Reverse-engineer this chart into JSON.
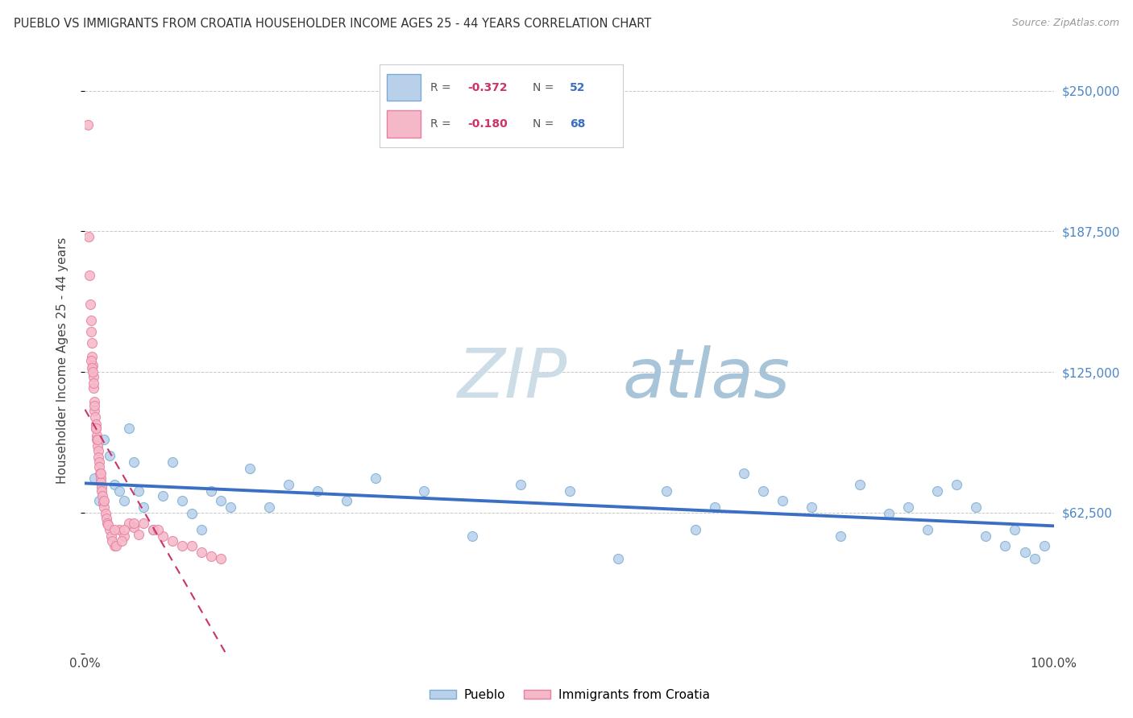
{
  "title": "PUEBLO VS IMMIGRANTS FROM CROATIA HOUSEHOLDER INCOME AGES 25 - 44 YEARS CORRELATION CHART",
  "source": "Source: ZipAtlas.com",
  "ylabel": "Householder Income Ages 25 - 44 years",
  "y_ticks": [
    0,
    62500,
    125000,
    187500,
    250000
  ],
  "y_tick_labels": [
    "",
    "$62,500",
    "$125,000",
    "$187,500",
    "$250,000"
  ],
  "background_color": "#ffffff",
  "grid_color": "#c8c8c8",
  "pueblo_color": "#b8d0ea",
  "pueblo_edge_color": "#7aadd4",
  "croatia_color": "#f5b8c8",
  "croatia_edge_color": "#e87fa0",
  "trendline_pueblo_color": "#3a6fc4",
  "trendline_croatia_color": "#cc3366",
  "marker_size": 75,
  "pueblo_x": [
    1.0,
    1.5,
    2.0,
    2.5,
    3.0,
    3.5,
    4.0,
    4.5,
    5.0,
    5.5,
    6.0,
    7.0,
    8.0,
    9.0,
    10.0,
    11.0,
    12.0,
    13.0,
    14.0,
    15.0,
    17.0,
    19.0,
    21.0,
    24.0,
    27.0,
    30.0,
    35.0,
    40.0,
    45.0,
    50.0,
    55.0,
    60.0,
    63.0,
    65.0,
    68.0,
    70.0,
    72.0,
    75.0,
    78.0,
    80.0,
    83.0,
    85.0,
    87.0,
    88.0,
    90.0,
    92.0,
    93.0,
    95.0,
    96.0,
    97.0,
    98.0,
    99.0
  ],
  "pueblo_y": [
    78000,
    68000,
    95000,
    88000,
    75000,
    72000,
    68000,
    100000,
    85000,
    72000,
    65000,
    55000,
    70000,
    85000,
    68000,
    62000,
    55000,
    72000,
    68000,
    65000,
    82000,
    65000,
    75000,
    72000,
    68000,
    78000,
    72000,
    52000,
    75000,
    72000,
    42000,
    72000,
    55000,
    65000,
    80000,
    72000,
    68000,
    65000,
    52000,
    75000,
    62000,
    65000,
    55000,
    72000,
    75000,
    65000,
    52000,
    48000,
    55000,
    45000,
    42000,
    48000
  ],
  "croatia_x": [
    0.3,
    0.4,
    0.5,
    0.55,
    0.6,
    0.65,
    0.7,
    0.75,
    0.8,
    0.85,
    0.9,
    0.95,
    1.0,
    1.05,
    1.1,
    1.15,
    1.2,
    1.25,
    1.3,
    1.35,
    1.4,
    1.45,
    1.5,
    1.55,
    1.6,
    1.65,
    1.7,
    1.75,
    1.8,
    1.9,
    2.0,
    2.1,
    2.2,
    2.3,
    2.5,
    2.7,
    3.0,
    3.5,
    4.0,
    5.0,
    6.0,
    7.0,
    8.0,
    2.8,
    3.2,
    4.5,
    5.5,
    7.5,
    9.0,
    10.0,
    11.0,
    12.0,
    13.0,
    14.0,
    3.8,
    2.4,
    1.0,
    0.9,
    1.1,
    0.6,
    0.7,
    1.3,
    0.8,
    1.6,
    2.0,
    3.0,
    4.0,
    5.0
  ],
  "croatia_y": [
    235000,
    185000,
    168000,
    155000,
    148000,
    143000,
    138000,
    132000,
    128000,
    123000,
    118000,
    112000,
    108000,
    105000,
    102000,
    100000,
    97000,
    95000,
    92000,
    90000,
    87000,
    85000,
    83000,
    80000,
    78000,
    76000,
    74000,
    72000,
    70000,
    67000,
    65000,
    62000,
    60000,
    58000,
    55000,
    52000,
    48000,
    55000,
    52000,
    56000,
    58000,
    55000,
    52000,
    50000,
    48000,
    58000,
    53000,
    55000,
    50000,
    48000,
    48000,
    45000,
    43000,
    42000,
    50000,
    57000,
    110000,
    120000,
    100000,
    130000,
    127000,
    95000,
    125000,
    80000,
    68000,
    55000,
    55000,
    58000
  ],
  "watermark_zip_color": "#ccdde8",
  "watermark_atlas_color": "#a8c4d8"
}
